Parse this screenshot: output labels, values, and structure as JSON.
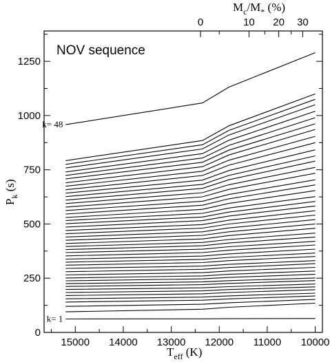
{
  "chart_data": {
    "type": "line",
    "annotation": "NOV sequence",
    "xlabel": {
      "main": "T",
      "sub": "eff",
      "unit": " (K)"
    },
    "ylabel": {
      "main": "P",
      "sub": "k",
      "unit": " (s)"
    },
    "top_axis_label": {
      "m1": "M",
      "s1": "c",
      "slash": "/M",
      "s2": "*",
      "unit": " (%)"
    },
    "xlim": [
      15650,
      9850
    ],
    "x_reversed": true,
    "ylim": [
      0,
      1390
    ],
    "x_ticks": [
      15000,
      14000,
      13000,
      12000,
      11000,
      10000
    ],
    "x_tick_labels": [
      "15000",
      "14000",
      "13000",
      "12000",
      "11000",
      "10000"
    ],
    "y_ticks": [
      0,
      250,
      500,
      750,
      1000,
      1250
    ],
    "y_tick_labels": [
      "0",
      "250",
      "500",
      "750",
      "1000",
      "1250"
    ],
    "top_ticks": [
      {
        "label": "0",
        "teff": 12390
      },
      {
        "label": "10",
        "teff": 11380
      },
      {
        "label": "20",
        "teff": 10760
      },
      {
        "label": "30",
        "teff": 10260
      }
    ],
    "k_labels": [
      {
        "text": "k= 1",
        "k": 1
      },
      {
        "text": "k= 48",
        "k": 48
      }
    ],
    "k_min": 1,
    "k_max": 48,
    "x_start": 15200,
    "x_end": 10000,
    "x_knee1": 12350,
    "x_knee2": 11800,
    "series_summary": {
      "P_start": [
        62,
        95,
        120,
        140,
        155,
        170,
        184,
        198,
        212,
        225,
        238,
        251,
        265,
        280,
        295,
        310,
        324,
        338,
        353,
        368,
        382,
        396,
        410,
        425,
        440,
        455,
        470,
        486,
        501,
        516,
        530,
        546,
        562,
        578,
        594,
        610,
        626,
        642,
        658,
        674,
        690,
        708,
        724,
        740,
        758,
        775,
        792,
        958
      ],
      "P_end": [
        64,
        135,
        152,
        168,
        181,
        197,
        210,
        223,
        239,
        251,
        268,
        283,
        300,
        317,
        331,
        350,
        366,
        384,
        403,
        420,
        440,
        458,
        480,
        500,
        520,
        541,
        561,
        583,
        604,
        626,
        654,
        680,
        704,
        734,
        761,
        790,
        814,
        842,
        875,
        904,
        936,
        962,
        990,
        1020,
        1050,
        1075,
        1100,
        1290
      ]
    }
  }
}
